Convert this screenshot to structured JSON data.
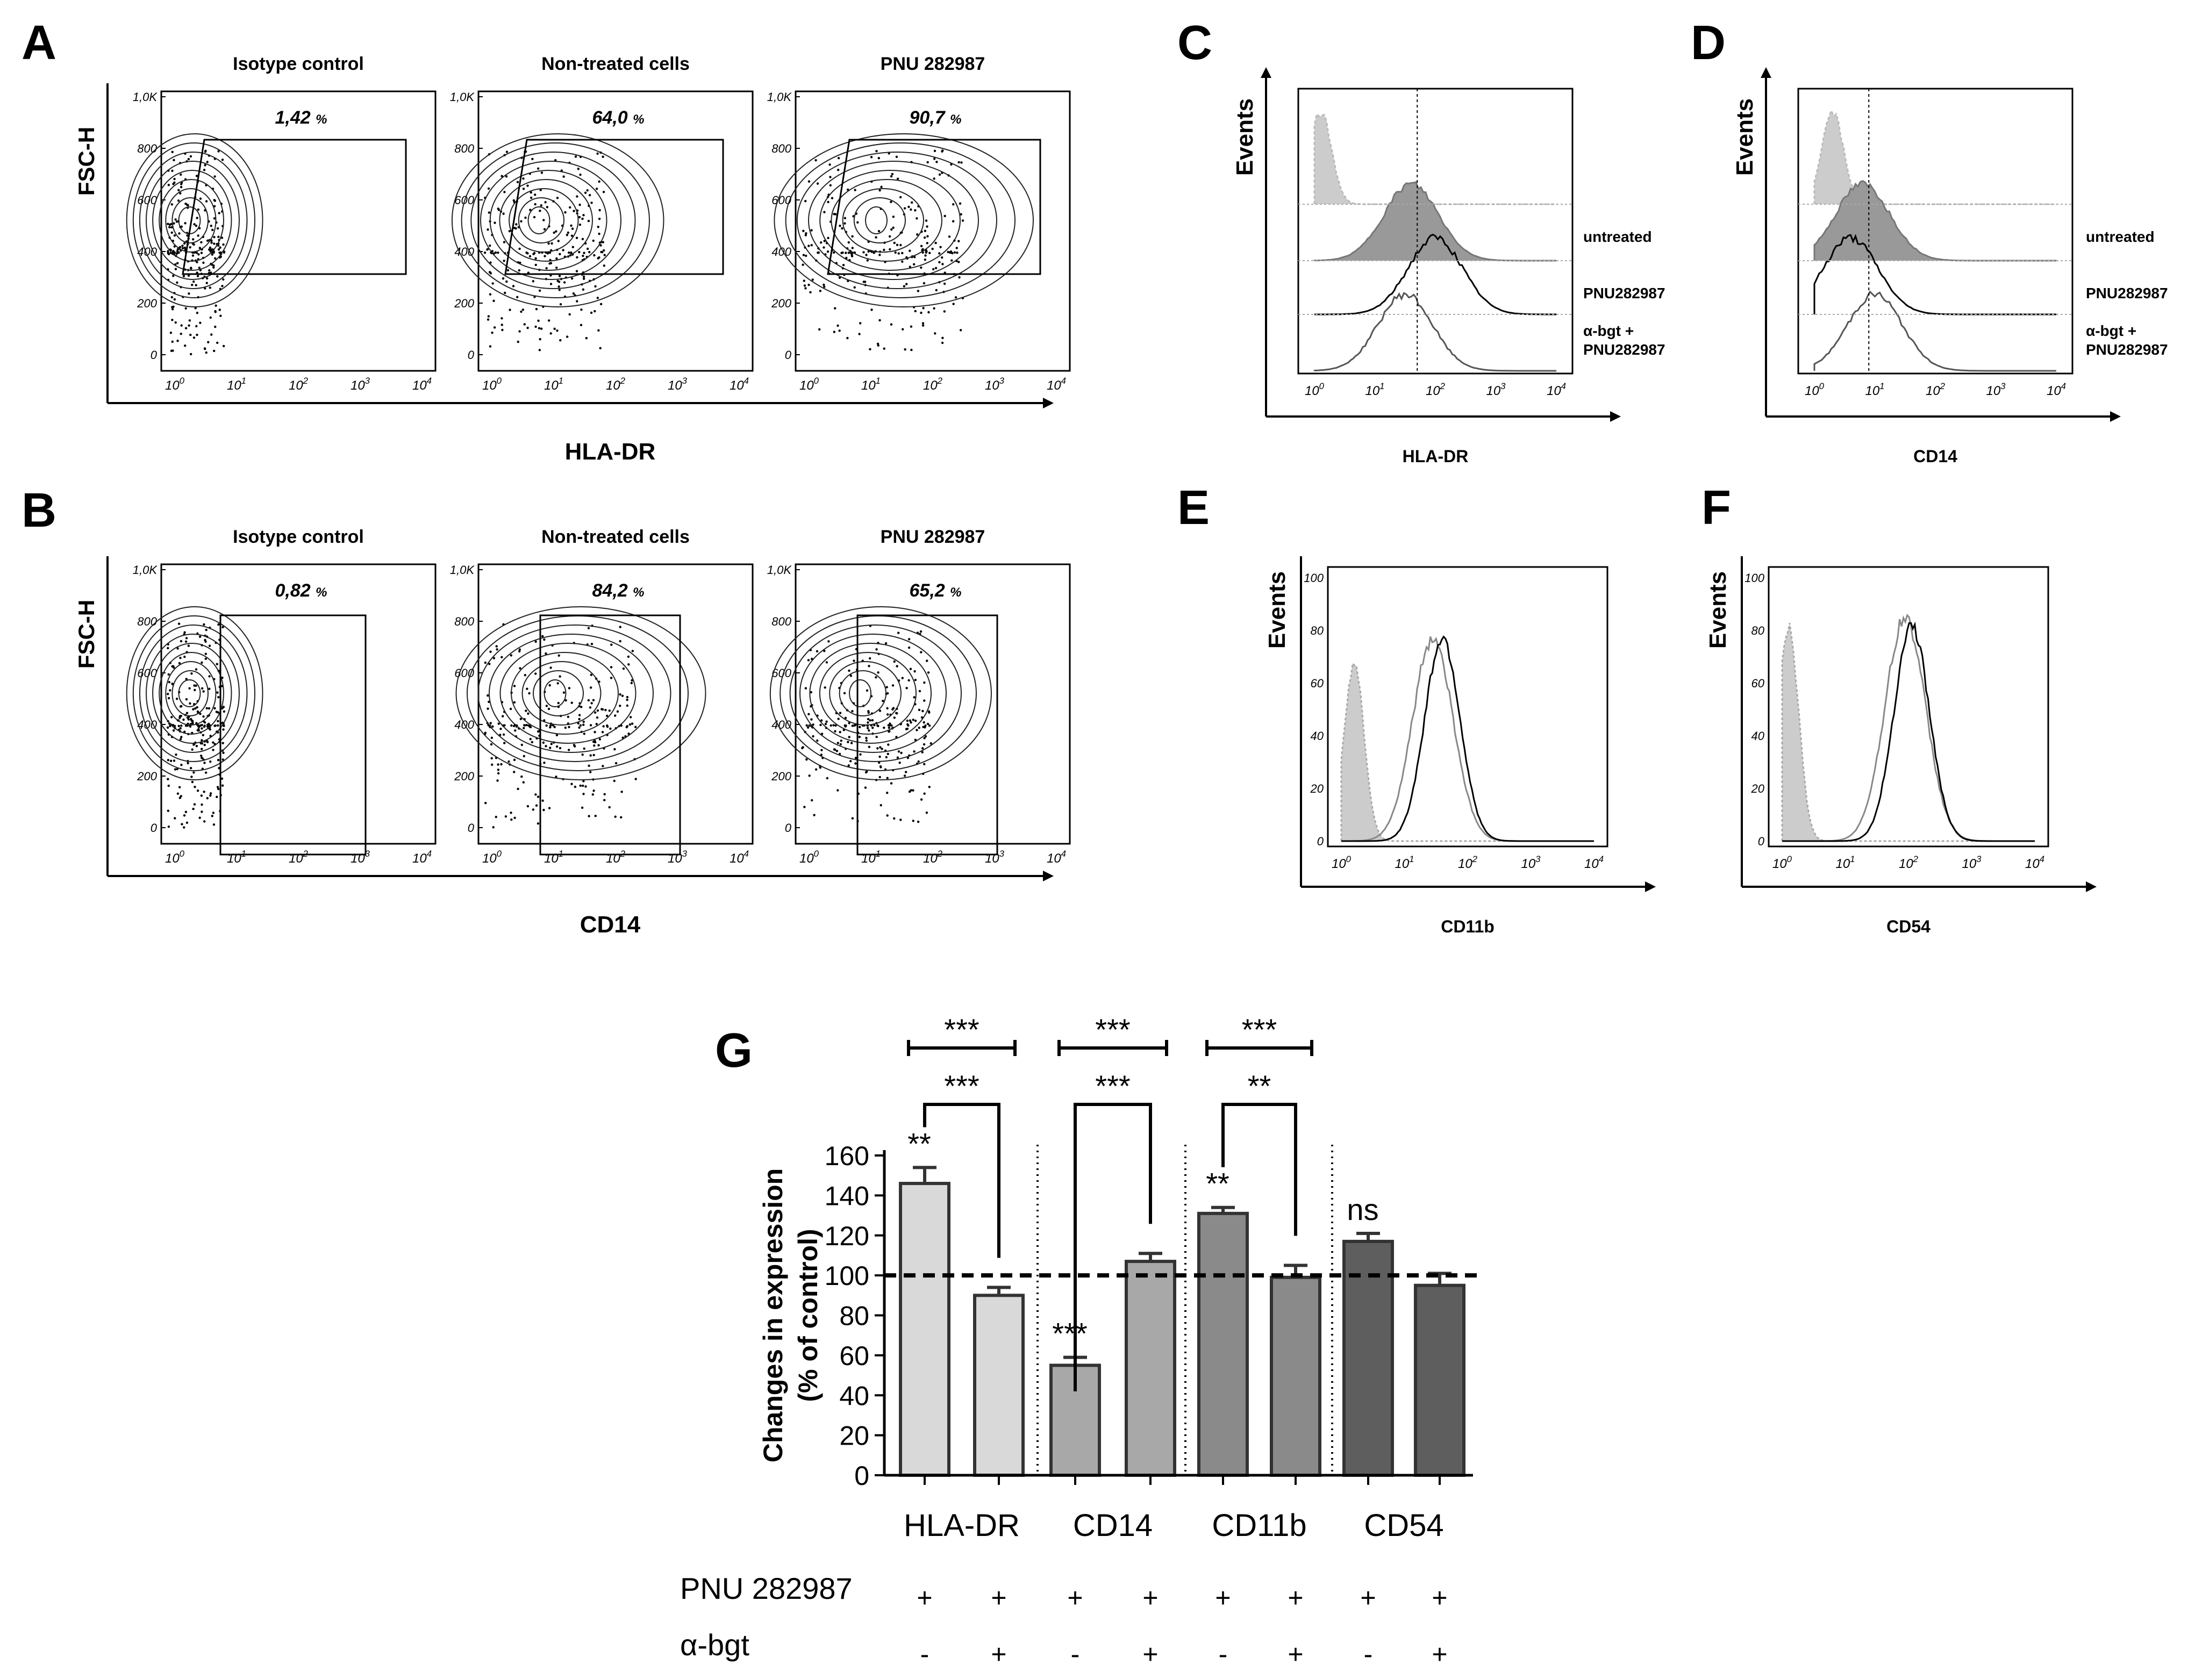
{
  "chart_data": [
    {
      "panel": "A",
      "type": "scatter",
      "kind": "flow-cytometry-contour",
      "ylabel": "FSC-H",
      "xlabel": "HLA-DR",
      "y_ticks": [
        "1,0K",
        "800",
        "600",
        "400",
        "200",
        "0"
      ],
      "x_ticks": [
        "10",
        "10",
        "10",
        "10",
        "10"
      ],
      "x_tick_exponents": [
        "0",
        "1",
        "2",
        "3",
        "4"
      ],
      "subplots": [
        {
          "title": "Isotype control",
          "value": "1,42",
          "unit": "%",
          "spread": 0.15
        },
        {
          "title": "Non-treated cells",
          "value": "64,0",
          "unit": "%",
          "spread": 0.55
        },
        {
          "title": "PNU 282987",
          "value": "90,7",
          "unit": "%",
          "spread": 0.8
        }
      ]
    },
    {
      "panel": "B",
      "type": "scatter",
      "kind": "flow-cytometry-contour",
      "ylabel": "FSC-H",
      "xlabel": "CD14",
      "y_ticks": [
        "1,0K",
        "800",
        "600",
        "400",
        "200",
        "0"
      ],
      "x_ticks": [
        "10",
        "10",
        "10",
        "10",
        "10"
      ],
      "x_tick_exponents": [
        "0",
        "1",
        "2",
        "3",
        "4"
      ],
      "subplots": [
        {
          "title": "Isotype control",
          "value": "0,82",
          "unit": "%",
          "spread": 0.15
        },
        {
          "title": "Non-treated cells",
          "value": "84,2",
          "unit": "%",
          "spread": 0.75
        },
        {
          "title": "PNU 282987",
          "value": "65,2",
          "unit": "%",
          "spread": 0.6
        }
      ]
    },
    {
      "panel": "C",
      "type": "area",
      "kind": "stacked-histogram",
      "ylabel": "Events",
      "xlabel": "HLA-DR",
      "x_ticks": [
        "10",
        "10",
        "10",
        "10",
        "10"
      ],
      "x_tick_exponents": [
        "0",
        "1",
        "2",
        "3",
        "4"
      ],
      "legend": [
        "untreated",
        "PNU282987",
        "α-bgt +",
        "PNU282987"
      ],
      "peaks_log10": {
        "isotype": 0.1,
        "untreated": 1.6,
        "pnu": 2.0,
        "bgt_pnu": 1.5
      }
    },
    {
      "panel": "D",
      "type": "area",
      "kind": "stacked-histogram",
      "ylabel": "Events",
      "xlabel": "CD14",
      "x_ticks": [
        "10",
        "10",
        "10",
        "10",
        "10"
      ],
      "x_tick_exponents": [
        "0",
        "1",
        "2",
        "3",
        "4"
      ],
      "legend": [
        "untreated",
        "PNU282987",
        "α-bgt +",
        "PNU282987"
      ],
      "peaks_log10": {
        "isotype": 0.3,
        "untreated": 0.8,
        "pnu": 0.6,
        "bgt_pnu": 1.0
      }
    },
    {
      "panel": "E",
      "type": "area",
      "kind": "overlay-histogram",
      "ylabel": "Events",
      "xlabel": "CD11b",
      "y_ticks": [
        "100",
        "80",
        "60",
        "40",
        "20",
        "0"
      ],
      "x_ticks": [
        "10",
        "10",
        "10",
        "10",
        "10"
      ],
      "x_tick_exponents": [
        "0",
        "1",
        "2",
        "3",
        "4"
      ],
      "ylim": [
        0,
        100
      ],
      "peaks_log10": {
        "isotype": 0.2,
        "gray": 1.45,
        "black": 1.6
      },
      "peak_heights": {
        "isotype": 70,
        "gray": 80,
        "black": 80
      }
    },
    {
      "panel": "F",
      "type": "area",
      "kind": "overlay-histogram",
      "ylabel": "Events",
      "xlabel": "CD54",
      "y_ticks": [
        "100",
        "80",
        "60",
        "40",
        "20",
        "0"
      ],
      "x_ticks": [
        "10",
        "10",
        "10",
        "10",
        "10"
      ],
      "x_tick_exponents": [
        "0",
        "1",
        "2",
        "3",
        "4"
      ],
      "ylim": [
        0,
        100
      ],
      "peaks_log10": {
        "isotype": 0.1,
        "gray": 1.95,
        "black": 2.05
      },
      "peak_heights": {
        "isotype": 85,
        "gray": 88,
        "black": 85
      }
    },
    {
      "panel": "G",
      "type": "bar",
      "ylabel_line1": "Changes in expression",
      "ylabel_line2": "(% of control)",
      "ylim": [
        0,
        160
      ],
      "y_ticks": [
        "160",
        "140",
        "120",
        "100",
        "80",
        "60",
        "40",
        "20",
        "0"
      ],
      "reference_line": 100,
      "groups": [
        "HLA-DR",
        "CD14",
        "CD11b",
        "CD54"
      ],
      "bars": [
        {
          "group": "HLA-DR",
          "value": 146,
          "error": 8,
          "color": "#d9d9d9"
        },
        {
          "group": "HLA-DR",
          "value": 90,
          "error": 4,
          "color": "#d9d9d9"
        },
        {
          "group": "CD14",
          "value": 55,
          "error": 4,
          "color": "#a8a8a8"
        },
        {
          "group": "CD14",
          "value": 107,
          "error": 4,
          "color": "#a8a8a8"
        },
        {
          "group": "CD11b",
          "value": 131,
          "error": 3,
          "color": "#8a8a8a"
        },
        {
          "group": "CD11b",
          "value": 99,
          "error": 6,
          "color": "#8a8a8a"
        },
        {
          "group": "CD54",
          "value": 117,
          "error": 4,
          "color": "#5e5e5e"
        },
        {
          "group": "CD54",
          "value": 95,
          "error": 6,
          "color": "#5e5e5e"
        }
      ],
      "bar_annotations": [
        "**",
        "",
        "***",
        "",
        "**",
        "",
        "ns",
        ""
      ],
      "significance_brackets": [
        {
          "group": "HLA-DR",
          "top": "***",
          "inner": "***"
        },
        {
          "group": "CD14",
          "top": "***",
          "inner": "***"
        },
        {
          "group": "CD11b",
          "top": "***",
          "inner": "**"
        }
      ],
      "treatment_rows": [
        {
          "label": "PNU 282987",
          "signs": [
            "+",
            "+",
            "+",
            "+",
            "+",
            "+",
            "+",
            "+"
          ]
        },
        {
          "label": "α-bgt",
          "signs": [
            "-",
            "+",
            "-",
            "+",
            "-",
            "+",
            "-",
            "+"
          ]
        }
      ]
    }
  ],
  "panel_letters": [
    "A",
    "B",
    "C",
    "D",
    "E",
    "F",
    "G"
  ]
}
